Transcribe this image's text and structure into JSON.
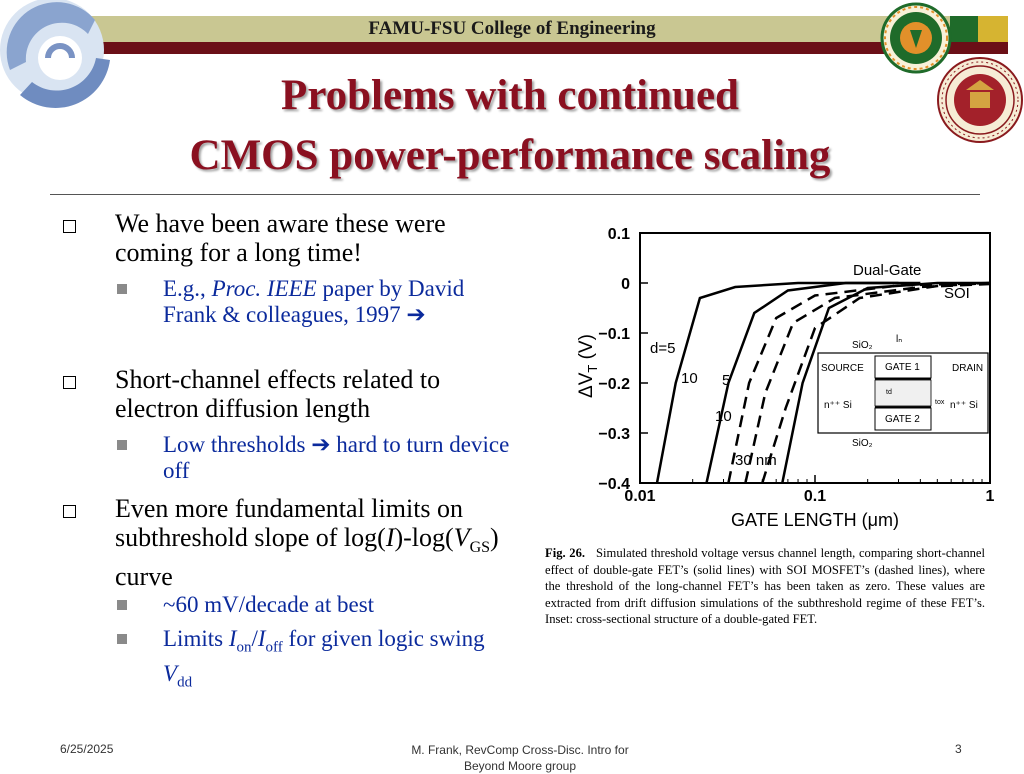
{
  "header": {
    "institution": "FAMU-FSU College of Engineering"
  },
  "title": {
    "line1": "Problems with continued",
    "line2": "CMOS power-performance scaling"
  },
  "logos": {
    "corner": "college-swirl-logo",
    "seal_left": "famu-seal",
    "seal_right": "florida-state-university-1857-seal"
  },
  "bullets": [
    {
      "text": "We have been aware these were coming for a long time!",
      "sub": [
        {
          "pre": "E.g., ",
          "italic": "Proc. IEEE",
          "post": " paper by David Frank & colleagues, 1997 ➔"
        }
      ]
    },
    {
      "text": "Short-channel effects related to electron diffusion length",
      "sub": [
        {
          "text": "Low thresholds ➔ hard to turn device off"
        }
      ]
    },
    {
      "text_pre": "Even more fundamental limits on subthreshold slope of log(",
      "var1": "I",
      "text_mid": ")-log(",
      "var2": "V",
      "var2_sub": "GS",
      "text_post": ") curve",
      "sub": [
        {
          "text": "~60 mV/decade at best"
        },
        {
          "pre": "Limits ",
          "v1": "I",
          "v1_sub": "on",
          "slash": "/",
          "v2": "I",
          "v2_sub": "off",
          "mid": " for given logic swing ",
          "v3": "V",
          "v3_sub": "dd"
        }
      ]
    }
  ],
  "chart_data": {
    "type": "line",
    "xlabel": "GATE LENGTH (μm)",
    "ylabel": "ΔV",
    "ylabel_sub": "T",
    "ylabel_unit": "(V)",
    "xscale": "log",
    "xlim": [
      0.01,
      1
    ],
    "ylim": [
      -0.4,
      0.1
    ],
    "x_ticks": [
      "0.01",
      "0.1",
      "1"
    ],
    "y_ticks": [
      "0.1",
      "0",
      "−0.1",
      "−0.2",
      "−0.3",
      "−0.4"
    ],
    "series": [
      {
        "name": "Dual-Gate",
        "style": "solid",
        "label": "d=5",
        "points": [
          [
            0.0125,
            -0.4
          ],
          [
            0.016,
            -0.2
          ],
          [
            0.022,
            -0.03
          ],
          [
            0.035,
            -0.008
          ],
          [
            0.08,
            0.0
          ],
          [
            0.3,
            0.0
          ]
        ]
      },
      {
        "name": "Dual-Gate",
        "style": "solid",
        "label": "10",
        "points": [
          [
            0.024,
            -0.4
          ],
          [
            0.032,
            -0.2
          ],
          [
            0.045,
            -0.06
          ],
          [
            0.07,
            -0.015
          ],
          [
            0.15,
            0.0
          ],
          [
            0.4,
            0.0
          ]
        ]
      },
      {
        "name": "Dual-Gate",
        "style": "solid",
        "label": "30 nm",
        "points": [
          [
            0.065,
            -0.4
          ],
          [
            0.085,
            -0.2
          ],
          [
            0.12,
            -0.05
          ],
          [
            0.2,
            -0.01
          ],
          [
            0.5,
            0.0
          ],
          [
            1.0,
            0.0
          ]
        ]
      },
      {
        "name": "SOI",
        "style": "dashed",
        "label": "5",
        "points": [
          [
            0.032,
            -0.4
          ],
          [
            0.042,
            -0.2
          ],
          [
            0.06,
            -0.07
          ],
          [
            0.1,
            -0.025
          ],
          [
            0.3,
            -0.005
          ],
          [
            1.2,
            0.0
          ]
        ]
      },
      {
        "name": "SOI",
        "style": "dashed",
        "label": "10",
        "points": [
          [
            0.04,
            -0.4
          ],
          [
            0.052,
            -0.22
          ],
          [
            0.075,
            -0.08
          ],
          [
            0.13,
            -0.03
          ],
          [
            0.4,
            -0.008
          ],
          [
            1.2,
            -0.002
          ]
        ]
      },
      {
        "name": "SOI",
        "style": "dashed",
        "label": "",
        "points": [
          [
            0.05,
            -0.4
          ],
          [
            0.068,
            -0.25
          ],
          [
            0.1,
            -0.09
          ],
          [
            0.18,
            -0.03
          ],
          [
            0.5,
            -0.006
          ],
          [
            1.2,
            0.0
          ]
        ]
      }
    ],
    "annotations": [
      "Dual-Gate",
      "SOI",
      "d=5",
      "10",
      "5",
      "10",
      "30 nm"
    ],
    "inset": {
      "labels": [
        "SiO₂",
        "lₙ",
        "SOURCE",
        "GATE 1",
        "DRAIN",
        "n⁺⁺ Si",
        "td",
        "tox",
        "n⁺⁺ Si",
        "GATE 2",
        "SiO₂"
      ]
    }
  },
  "caption": {
    "label": "Fig. 26.",
    "text": "Simulated threshold voltage versus channel length, comparing short-channel effect of double-gate FET’s (solid lines) with SOI MOSFET’s (dashed lines), where the threshold of the long-channel FET’s has been taken as zero. These values are extracted from drift diffusion simulations of the subthreshold regime of these FET’s. Inset: cross-sectional structure of a double-gated FET."
  },
  "footer": {
    "date": "6/25/2025",
    "center": "M. Frank, RevComp Cross-Disc. Intro for Beyond Moore group",
    "page": "3"
  }
}
